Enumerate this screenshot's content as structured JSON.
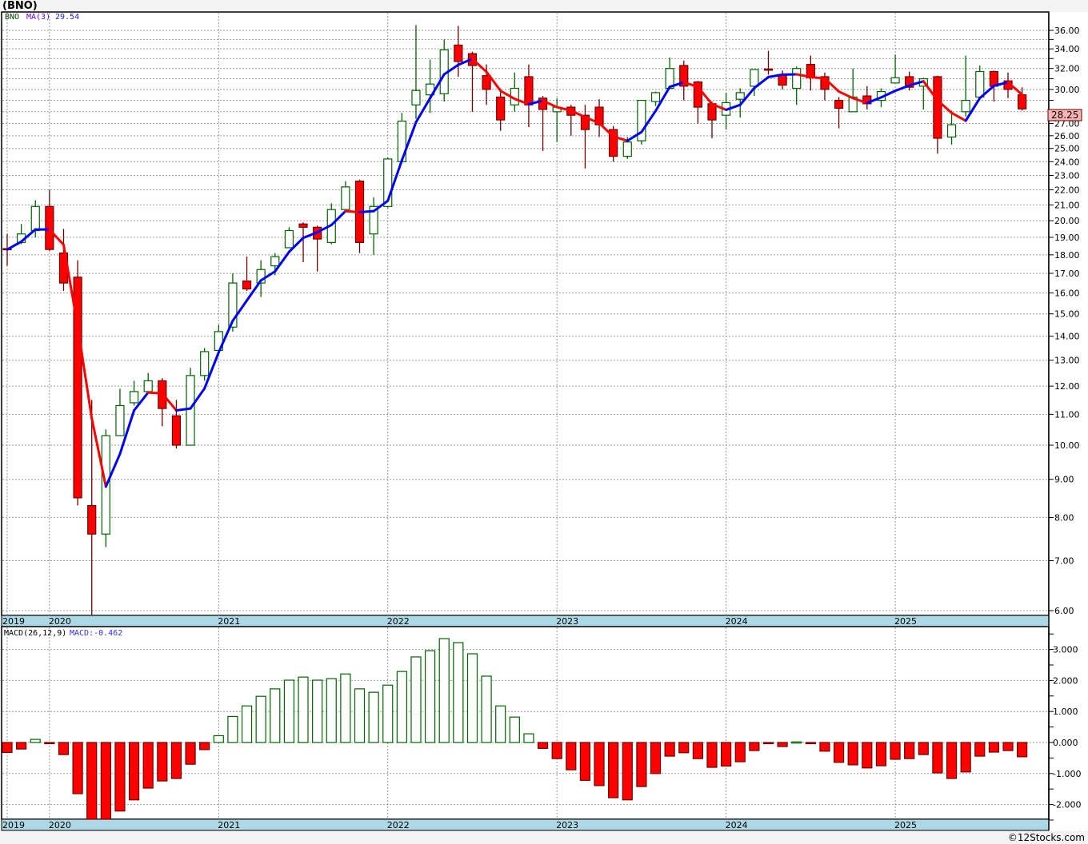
{
  "title": "(BNO)",
  "footer": "©12Stocks.com",
  "colors": {
    "up_stroke": "#006400",
    "down_fill": "#ff0000",
    "down_stroke": "#700000",
    "ma_up": "#0000ff",
    "ma_down": "#ff0000",
    "date_bar": "#add8e6",
    "last_price_bg": "#ffb4b4"
  },
  "chart_data": [
    {
      "type": "candlestick",
      "title": "BNO",
      "legend": {
        "symbol": "BNO",
        "ma_label": "MA(3)",
        "ma_value": "29.54"
      },
      "scale": "log",
      "ylim": [
        6,
        36.8
      ],
      "y_ticks": [
        "36.00",
        "34.00",
        "32.00",
        "30.00",
        "27.00",
        "26.00",
        "25.00",
        "24.00",
        "23.00",
        "22.00",
        "21.00",
        "20.00",
        "19.00",
        "18.00",
        "17.00",
        "16.00",
        "15.00",
        "14.00",
        "13.00",
        "12.00",
        "11.00",
        "10.00",
        "9.00",
        "8.00",
        "7.00",
        "6.00"
      ],
      "last_price": "28.25",
      "period": "monthly",
      "start": "2019-10",
      "x_labels": [
        {
          "label": "2019",
          "index": 0
        },
        {
          "label": "2020",
          "index": 3
        },
        {
          "label": "2021",
          "index": 15
        },
        {
          "label": "2022",
          "index": 27
        },
        {
          "label": "2023",
          "index": 39
        },
        {
          "label": "2024",
          "index": 51
        },
        {
          "label": "2025",
          "index": 63
        }
      ],
      "ma_period": 3,
      "ohlc": [
        [
          18.35,
          19.2,
          17.4,
          18.3
        ],
        [
          18.7,
          19.8,
          18.6,
          19.2
        ],
        [
          19.4,
          21.3,
          19.0,
          20.9
        ],
        [
          20.9,
          22.0,
          18.2,
          18.3
        ],
        [
          18.1,
          19.5,
          16.1,
          16.5
        ],
        [
          16.8,
          17.7,
          8.3,
          8.5
        ],
        [
          8.3,
          11.5,
          5.9,
          7.6
        ],
        [
          7.6,
          10.5,
          7.3,
          10.3
        ],
        [
          10.3,
          11.9,
          10.3,
          11.3
        ],
        [
          11.4,
          12.2,
          11.3,
          11.8
        ],
        [
          11.8,
          12.5,
          11.8,
          12.2
        ],
        [
          12.2,
          12.3,
          10.6,
          11.2
        ],
        [
          10.95,
          11.5,
          9.9,
          10.0
        ],
        [
          10.0,
          12.7,
          10.0,
          12.4
        ],
        [
          12.4,
          13.5,
          12.2,
          13.35
        ],
        [
          13.4,
          14.5,
          13.4,
          14.2
        ],
        [
          14.4,
          17.0,
          14.2,
          16.5
        ],
        [
          16.6,
          17.9,
          16.1,
          16.2
        ],
        [
          16.5,
          17.7,
          15.8,
          17.2
        ],
        [
          17.4,
          18.1,
          16.9,
          17.9
        ],
        [
          18.4,
          19.6,
          18.4,
          19.4
        ],
        [
          19.8,
          19.9,
          17.6,
          19.6
        ],
        [
          19.6,
          19.7,
          17.1,
          18.9
        ],
        [
          18.7,
          21.1,
          18.6,
          20.7
        ],
        [
          20.7,
          22.6,
          20.6,
          22.2
        ],
        [
          22.6,
          22.7,
          18.1,
          18.7
        ],
        [
          19.2,
          21.5,
          18.0,
          20.9
        ],
        [
          20.9,
          24.3,
          20.8,
          24.2
        ],
        [
          24.0,
          27.9,
          24.0,
          27.2
        ],
        [
          28.6,
          36.6,
          27.4,
          29.9
        ],
        [
          29.5,
          32.9,
          27.9,
          30.5
        ],
        [
          29.6,
          35.0,
          28.9,
          33.9
        ],
        [
          34.4,
          36.5,
          31.2,
          32.7
        ],
        [
          33.5,
          33.7,
          28.0,
          32.3
        ],
        [
          31.3,
          32.4,
          28.6,
          30.0
        ],
        [
          29.3,
          30.1,
          26.4,
          27.3
        ],
        [
          28.6,
          31.6,
          28.0,
          30.1
        ],
        [
          31.2,
          32.4,
          26.7,
          28.6
        ],
        [
          29.2,
          29.4,
          24.8,
          28.2
        ],
        [
          28.0,
          29.2,
          25.5,
          28.4
        ],
        [
          28.4,
          28.6,
          26.0,
          27.7
        ],
        [
          27.7,
          28.6,
          23.5,
          26.5
        ],
        [
          28.4,
          29.1,
          25.9,
          26.9
        ],
        [
          26.5,
          26.8,
          24.0,
          24.4
        ],
        [
          24.4,
          25.9,
          24.2,
          25.5
        ],
        [
          25.6,
          29.0,
          25.3,
          29.0
        ],
        [
          28.9,
          29.8,
          28.5,
          29.7
        ],
        [
          30.1,
          33.1,
          30.0,
          32.0
        ],
        [
          32.3,
          32.8,
          29.0,
          30.3
        ],
        [
          30.7,
          30.8,
          27.0,
          28.4
        ],
        [
          28.7,
          28.9,
          25.8,
          27.3
        ],
        [
          27.7,
          29.7,
          26.5,
          28.8
        ],
        [
          29.1,
          30.1,
          27.5,
          29.7
        ],
        [
          30.3,
          31.9,
          29.4,
          31.9
        ],
        [
          31.95,
          33.8,
          31.4,
          31.9
        ],
        [
          31.4,
          31.8,
          30.0,
          30.4
        ],
        [
          30.1,
          32.2,
          28.6,
          32.0
        ],
        [
          32.4,
          33.3,
          29.9,
          31.1
        ],
        [
          31.2,
          31.6,
          29.0,
          30.0
        ],
        [
          29.0,
          29.3,
          26.6,
          28.3
        ],
        [
          28.0,
          32.0,
          28.0,
          29.3
        ],
        [
          29.4,
          30.3,
          28.2,
          28.7
        ],
        [
          29.0,
          30.1,
          28.4,
          29.8
        ],
        [
          30.6,
          33.4,
          30.6,
          31.1
        ],
        [
          31.2,
          31.7,
          29.9,
          30.2
        ],
        [
          30.3,
          31.1,
          28.2,
          31.0
        ],
        [
          31.2,
          31.3,
          24.6,
          25.8
        ],
        [
          25.9,
          28.1,
          25.3,
          26.9
        ],
        [
          28.0,
          33.3,
          27.6,
          29.0
        ],
        [
          29.3,
          32.3,
          29.3,
          31.7
        ],
        [
          31.7,
          31.8,
          28.9,
          30.3
        ],
        [
          30.8,
          31.6,
          29.2,
          30.0
        ],
        [
          29.5,
          30.2,
          28.1,
          28.25
        ]
      ]
    },
    {
      "type": "bar",
      "title": "MACD(26,12,9)",
      "legend": {
        "label": "MACD(26,12,9)",
        "value_label": "MACD:-0.462"
      },
      "ylim": [
        -2.5,
        3.6
      ],
      "y_ticks": [
        "3.000",
        "2.000",
        "1.000",
        "0.000",
        "-1.000",
        "-2.000"
      ],
      "values": [
        -0.32,
        -0.21,
        0.1,
        -0.03,
        -0.39,
        -1.65,
        -2.6,
        -2.6,
        -2.21,
        -1.85,
        -1.47,
        -1.24,
        -1.16,
        -0.7,
        -0.23,
        0.22,
        0.84,
        1.18,
        1.49,
        1.73,
        2.01,
        2.11,
        2.01,
        2.06,
        2.21,
        1.73,
        1.62,
        1.85,
        2.29,
        2.76,
        2.96,
        3.35,
        3.22,
        2.86,
        2.14,
        1.18,
        0.82,
        0.28,
        -0.19,
        -0.52,
        -0.88,
        -1.22,
        -1.39,
        -1.78,
        -1.85,
        -1.42,
        -1.0,
        -0.44,
        -0.33,
        -0.52,
        -0.8,
        -0.76,
        -0.62,
        -0.26,
        -0.03,
        -0.13,
        0.02,
        -0.03,
        -0.28,
        -0.64,
        -0.72,
        -0.82,
        -0.75,
        -0.54,
        -0.52,
        -0.39,
        -0.98,
        -1.16,
        -0.95,
        -0.44,
        -0.31,
        -0.26,
        -0.46
      ]
    }
  ]
}
